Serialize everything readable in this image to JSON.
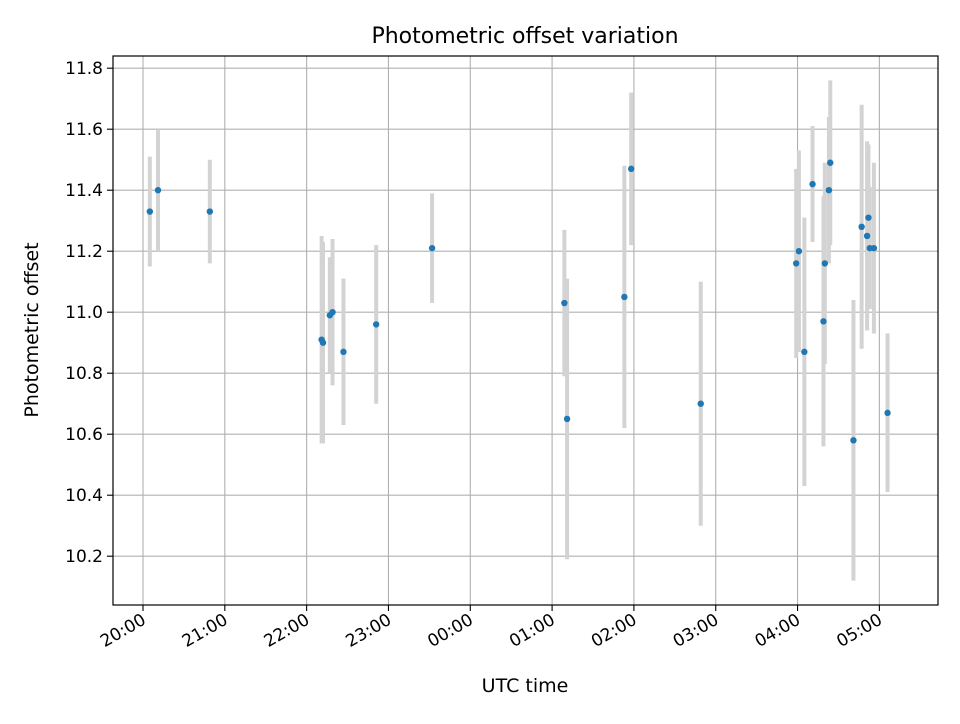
{
  "chart_data": {
    "type": "scatter",
    "title": "Photometric offset variation",
    "xlabel": "UTC time",
    "ylabel": "Photometric offset",
    "grid": true,
    "xlim": [
      "19:38",
      "05:43"
    ],
    "ylim": [
      10.04,
      11.84
    ],
    "x_ticks": [
      "20:00",
      "21:00",
      "22:00",
      "23:00",
      "00:00",
      "01:00",
      "02:00",
      "03:00",
      "04:00",
      "05:00"
    ],
    "y_ticks": [
      "10.2",
      "10.4",
      "10.6",
      "10.8",
      "11.0",
      "11.2",
      "11.4",
      "11.6",
      "11.8"
    ],
    "colors": {
      "points": "#1f77b4",
      "errorbars": "#d3d3d3",
      "grid": "#b0b0b0"
    },
    "series": [
      {
        "x": [
          "20:05",
          "20:11",
          "20:49",
          "22:11",
          "22:12",
          "22:17",
          "22:19",
          "22:27",
          "22:51",
          "23:32",
          "01:09",
          "01:11",
          "01:53",
          "01:58",
          "02:49",
          "03:59",
          "04:01",
          "04:05",
          "04:11",
          "04:19",
          "04:20",
          "04:23",
          "04:24",
          "04:41",
          "04:47",
          "04:51",
          "04:52",
          "04:53",
          "04:56",
          "05:06"
        ],
        "y": [
          11.33,
          11.4,
          11.33,
          10.91,
          10.9,
          10.99,
          11.0,
          10.87,
          10.96,
          11.21,
          11.03,
          10.65,
          11.05,
          11.47,
          10.7,
          11.16,
          11.2,
          10.87,
          11.42,
          10.97,
          11.16,
          11.4,
          11.49,
          10.58,
          11.28,
          11.25,
          11.31,
          11.21,
          11.21,
          10.67
        ],
        "yerr": [
          0.18,
          0.2,
          0.17,
          0.34,
          0.33,
          0.19,
          0.24,
          0.24,
          0.26,
          0.18,
          0.24,
          0.46,
          0.43,
          0.25,
          0.4,
          0.31,
          0.33,
          0.44,
          0.19,
          0.41,
          0.33,
          0.24,
          0.27,
          0.46,
          0.4,
          0.31,
          0.24,
          0.2,
          0.28,
          0.26
        ]
      }
    ]
  }
}
